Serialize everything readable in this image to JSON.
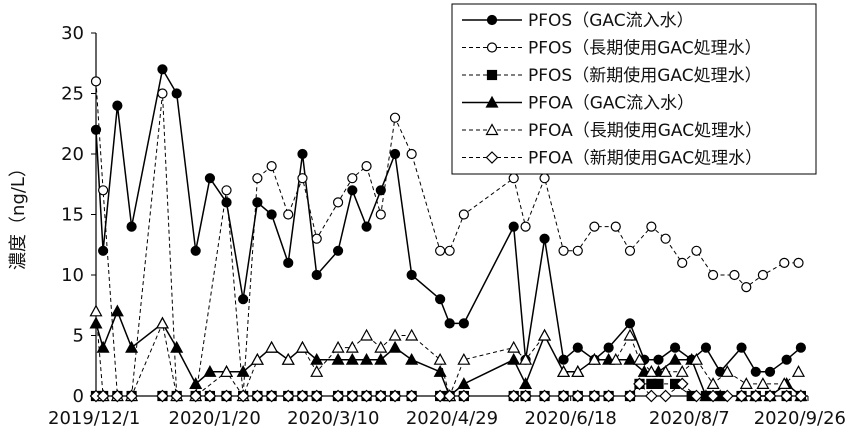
{
  "chart_data": {
    "type": "line",
    "title": "",
    "xlabel": "",
    "ylabel": "濃度（ng/L）",
    "ylim": [
      0,
      30
    ],
    "yticks": [
      0,
      5,
      10,
      15,
      20,
      25,
      30
    ],
    "xlim": [
      "2019-12-01",
      "2020-09-26"
    ],
    "xtick_labels": [
      "2019/12/1",
      "2020/1/20",
      "2020/3/10",
      "2020/4/29",
      "2020/6/18",
      "2020/8/7",
      "2020/9/26"
    ],
    "grid": false,
    "legend": "top-right",
    "series": [
      {
        "name": "PFOS（GAC流入水）",
        "line": "solid",
        "marker": "circle",
        "filled": true,
        "color": "#000000",
        "points": [
          [
            "2019-12-01",
            22
          ],
          [
            "2019-12-04",
            12
          ],
          [
            "2019-12-10",
            24
          ],
          [
            "2019-12-16",
            14
          ],
          [
            "2019-12-29",
            27
          ],
          [
            "2020-01-04",
            25
          ],
          [
            "2020-01-12",
            12
          ],
          [
            "2020-01-18",
            18
          ],
          [
            "2020-01-25",
            16
          ],
          [
            "2020-02-01",
            8
          ],
          [
            "2020-02-07",
            16
          ],
          [
            "2020-02-13",
            15
          ],
          [
            "2020-02-20",
            11
          ],
          [
            "2020-02-26",
            20
          ],
          [
            "2020-03-03",
            10
          ],
          [
            "2020-03-12",
            12
          ],
          [
            "2020-03-18",
            17
          ],
          [
            "2020-03-24",
            14
          ],
          [
            "2020-03-30",
            17
          ],
          [
            "2020-04-05",
            20
          ],
          [
            "2020-04-12",
            10
          ],
          [
            "2020-04-24",
            8
          ],
          [
            "2020-04-28",
            6
          ],
          [
            "2020-05-04",
            6
          ],
          [
            "2020-05-25",
            14
          ],
          [
            "2020-05-30",
            3
          ],
          [
            "2020-06-07",
            13
          ],
          [
            "2020-06-15",
            3
          ],
          [
            "2020-06-21",
            4
          ],
          [
            "2020-06-28",
            3
          ],
          [
            "2020-07-04",
            4
          ],
          [
            "2020-07-13",
            6
          ],
          [
            "2020-07-19",
            3
          ],
          [
            "2020-07-25",
            3
          ],
          [
            "2020-08-01",
            4
          ],
          [
            "2020-08-08",
            3
          ],
          [
            "2020-08-14",
            4
          ],
          [
            "2020-08-20",
            2
          ],
          [
            "2020-08-29",
            4
          ],
          [
            "2020-09-04",
            2
          ],
          [
            "2020-09-10",
            2
          ],
          [
            "2020-09-17",
            3
          ],
          [
            "2020-09-23",
            4
          ]
        ]
      },
      {
        "name": "PFOS（長期使用GAC処理水）",
        "line": "dashed",
        "marker": "circle",
        "filled": false,
        "color": "#000000",
        "points": [
          [
            "2019-12-01",
            26
          ],
          [
            "2019-12-04",
            17
          ],
          [
            "2019-12-10",
            0
          ],
          [
            "2019-12-16",
            0
          ],
          [
            "2019-12-29",
            25
          ],
          [
            "2020-01-04",
            0
          ],
          [
            "2020-01-12",
            0
          ],
          [
            "2020-01-25",
            17
          ],
          [
            "2020-02-01",
            0
          ],
          [
            "2020-02-07",
            18
          ],
          [
            "2020-02-13",
            19
          ],
          [
            "2020-02-20",
            15
          ],
          [
            "2020-02-26",
            18
          ],
          [
            "2020-03-03",
            13
          ],
          [
            "2020-03-12",
            16
          ],
          [
            "2020-03-18",
            18
          ],
          [
            "2020-03-24",
            19
          ],
          [
            "2020-03-30",
            15
          ],
          [
            "2020-04-05",
            23
          ],
          [
            "2020-04-12",
            20
          ],
          [
            "2020-04-24",
            12
          ],
          [
            "2020-04-28",
            12
          ],
          [
            "2020-05-04",
            15
          ],
          [
            "2020-05-25",
            18
          ],
          [
            "2020-05-30",
            14
          ],
          [
            "2020-06-07",
            18
          ],
          [
            "2020-06-15",
            12
          ],
          [
            "2020-06-21",
            12
          ],
          [
            "2020-06-28",
            14
          ],
          [
            "2020-07-07",
            14
          ],
          [
            "2020-07-13",
            12
          ],
          [
            "2020-07-22",
            14
          ],
          [
            "2020-07-28",
            13
          ],
          [
            "2020-08-04",
            11
          ],
          [
            "2020-08-10",
            12
          ],
          [
            "2020-08-17",
            10
          ],
          [
            "2020-08-26",
            10
          ],
          [
            "2020-08-31",
            9
          ],
          [
            "2020-09-07",
            10
          ],
          [
            "2020-09-16",
            11
          ],
          [
            "2020-09-22",
            11
          ]
        ]
      },
      {
        "name": "PFOS（新期使用GAC処理水）",
        "line": "dashed",
        "marker": "square",
        "filled": true,
        "color": "#000000",
        "points": [
          [
            "2019-12-01",
            0
          ],
          [
            "2019-12-04",
            0
          ],
          [
            "2019-12-10",
            0
          ],
          [
            "2019-12-16",
            0
          ],
          [
            "2019-12-29",
            0
          ],
          [
            "2020-01-04",
            0
          ],
          [
            "2020-01-12",
            0
          ],
          [
            "2020-01-18",
            0
          ],
          [
            "2020-01-25",
            0
          ],
          [
            "2020-02-01",
            0
          ],
          [
            "2020-02-07",
            0
          ],
          [
            "2020-02-13",
            0
          ],
          [
            "2020-02-20",
            0
          ],
          [
            "2020-02-26",
            0
          ],
          [
            "2020-03-03",
            0
          ],
          [
            "2020-03-12",
            0
          ],
          [
            "2020-03-18",
            0
          ],
          [
            "2020-03-24",
            0
          ],
          [
            "2020-03-30",
            0
          ],
          [
            "2020-04-05",
            0
          ],
          [
            "2020-04-12",
            0
          ],
          [
            "2020-04-24",
            0
          ],
          [
            "2020-04-28",
            0
          ],
          [
            "2020-05-04",
            0
          ],
          [
            "2020-05-25",
            0
          ],
          [
            "2020-05-30",
            0
          ],
          [
            "2020-06-07",
            0
          ],
          [
            "2020-06-15",
            0
          ],
          [
            "2020-06-21",
            0
          ],
          [
            "2020-06-28",
            0
          ],
          [
            "2020-07-04",
            0
          ],
          [
            "2020-07-13",
            0
          ],
          [
            "2020-07-17",
            1
          ],
          [
            "2020-07-22",
            1
          ],
          [
            "2020-07-25",
            1
          ],
          [
            "2020-08-01",
            1
          ],
          [
            "2020-08-08",
            0
          ],
          [
            "2020-08-14",
            0
          ],
          [
            "2020-08-20",
            0
          ],
          [
            "2020-08-29",
            0
          ],
          [
            "2020-09-04",
            0
          ],
          [
            "2020-09-10",
            0
          ],
          [
            "2020-09-17",
            0
          ],
          [
            "2020-09-23",
            0
          ]
        ]
      },
      {
        "name": "PFOA（GAC流入水）",
        "line": "solid",
        "marker": "triangle",
        "filled": true,
        "color": "#000000",
        "points": [
          [
            "2019-12-01",
            6
          ],
          [
            "2019-12-04",
            4
          ],
          [
            "2019-12-10",
            7
          ],
          [
            "2019-12-16",
            4
          ],
          [
            "2019-12-29",
            6
          ],
          [
            "2020-01-04",
            4
          ],
          [
            "2020-01-12",
            1
          ],
          [
            "2020-01-18",
            2
          ],
          [
            "2020-01-25",
            2
          ],
          [
            "2020-02-01",
            2
          ],
          [
            "2020-02-07",
            3
          ],
          [
            "2020-02-13",
            4
          ],
          [
            "2020-02-20",
            3
          ],
          [
            "2020-02-26",
            4
          ],
          [
            "2020-03-03",
            3
          ],
          [
            "2020-03-12",
            3
          ],
          [
            "2020-03-18",
            3
          ],
          [
            "2020-03-24",
            3
          ],
          [
            "2020-03-30",
            3
          ],
          [
            "2020-04-05",
            4
          ],
          [
            "2020-04-12",
            3
          ],
          [
            "2020-04-24",
            2
          ],
          [
            "2020-04-28",
            0
          ],
          [
            "2020-05-04",
            1
          ],
          [
            "2020-05-25",
            3
          ],
          [
            "2020-05-30",
            1
          ],
          [
            "2020-06-07",
            5
          ],
          [
            "2020-06-15",
            2
          ],
          [
            "2020-06-21",
            2
          ],
          [
            "2020-06-28",
            3
          ],
          [
            "2020-07-04",
            3
          ],
          [
            "2020-07-13",
            3
          ],
          [
            "2020-07-19",
            2
          ],
          [
            "2020-07-25",
            2
          ],
          [
            "2020-08-01",
            3
          ],
          [
            "2020-08-08",
            3
          ],
          [
            "2020-08-14",
            0
          ],
          [
            "2020-08-20",
            0
          ],
          [
            "2020-08-29",
            0
          ],
          [
            "2020-09-04",
            0
          ],
          [
            "2020-09-10",
            0
          ],
          [
            "2020-09-17",
            1
          ],
          [
            "2020-09-23",
            0
          ]
        ]
      },
      {
        "name": "PFOA（長期使用GAC処理水）",
        "line": "dashed",
        "marker": "triangle",
        "filled": false,
        "color": "#000000",
        "points": [
          [
            "2019-12-01",
            7
          ],
          [
            "2019-12-04",
            0
          ],
          [
            "2019-12-10",
            0
          ],
          [
            "2019-12-16",
            0
          ],
          [
            "2019-12-29",
            6
          ],
          [
            "2020-01-04",
            0
          ],
          [
            "2020-01-12",
            0
          ],
          [
            "2020-01-25",
            2
          ],
          [
            "2020-02-01",
            0
          ],
          [
            "2020-02-07",
            3
          ],
          [
            "2020-02-13",
            4
          ],
          [
            "2020-02-20",
            3
          ],
          [
            "2020-02-26",
            4
          ],
          [
            "2020-03-03",
            2
          ],
          [
            "2020-03-12",
            4
          ],
          [
            "2020-03-18",
            4
          ],
          [
            "2020-03-24",
            5
          ],
          [
            "2020-03-30",
            4
          ],
          [
            "2020-04-05",
            5
          ],
          [
            "2020-04-12",
            5
          ],
          [
            "2020-04-24",
            3
          ],
          [
            "2020-04-28",
            0
          ],
          [
            "2020-05-04",
            3
          ],
          [
            "2020-05-25",
            4
          ],
          [
            "2020-05-30",
            3
          ],
          [
            "2020-06-07",
            5
          ],
          [
            "2020-06-15",
            2
          ],
          [
            "2020-06-21",
            2
          ],
          [
            "2020-06-28",
            3
          ],
          [
            "2020-07-07",
            3
          ],
          [
            "2020-07-13",
            5
          ],
          [
            "2020-07-17",
            3
          ],
          [
            "2020-07-22",
            2
          ],
          [
            "2020-07-28",
            2
          ],
          [
            "2020-08-04",
            2
          ],
          [
            "2020-08-10",
            3
          ],
          [
            "2020-08-17",
            1
          ],
          [
            "2020-08-23",
            2
          ],
          [
            "2020-08-31",
            1
          ],
          [
            "2020-09-07",
            1
          ],
          [
            "2020-09-16",
            1
          ],
          [
            "2020-09-22",
            2
          ]
        ]
      },
      {
        "name": "PFOA（新期使用GAC処理水）",
        "line": "dashed",
        "marker": "diamond",
        "filled": false,
        "color": "#000000",
        "points": [
          [
            "2019-12-01",
            0
          ],
          [
            "2019-12-04",
            0
          ],
          [
            "2019-12-10",
            0
          ],
          [
            "2019-12-16",
            0
          ],
          [
            "2019-12-29",
            0
          ],
          [
            "2020-01-04",
            0
          ],
          [
            "2020-01-12",
            0
          ],
          [
            "2020-01-18",
            0
          ],
          [
            "2020-01-25",
            0
          ],
          [
            "2020-02-01",
            0
          ],
          [
            "2020-02-07",
            0
          ],
          [
            "2020-02-13",
            0
          ],
          [
            "2020-02-20",
            0
          ],
          [
            "2020-02-26",
            0
          ],
          [
            "2020-03-03",
            0
          ],
          [
            "2020-03-12",
            0
          ],
          [
            "2020-03-18",
            0
          ],
          [
            "2020-03-24",
            0
          ],
          [
            "2020-03-30",
            0
          ],
          [
            "2020-04-05",
            0
          ],
          [
            "2020-04-12",
            0
          ],
          [
            "2020-04-24",
            0
          ],
          [
            "2020-04-28",
            0
          ],
          [
            "2020-05-04",
            0
          ],
          [
            "2020-05-25",
            0
          ],
          [
            "2020-05-30",
            0
          ],
          [
            "2020-06-07",
            0
          ],
          [
            "2020-06-15",
            0
          ],
          [
            "2020-06-21",
            0
          ],
          [
            "2020-06-28",
            0
          ],
          [
            "2020-07-04",
            0
          ],
          [
            "2020-07-13",
            0
          ],
          [
            "2020-07-17",
            1
          ],
          [
            "2020-07-22",
            0
          ],
          [
            "2020-07-28",
            0
          ],
          [
            "2020-08-04",
            1
          ],
          [
            "2020-08-10",
            0
          ],
          [
            "2020-08-17",
            0
          ],
          [
            "2020-08-23",
            0
          ],
          [
            "2020-08-29",
            0
          ],
          [
            "2020-09-04",
            0
          ],
          [
            "2020-09-10",
            0
          ],
          [
            "2020-09-17",
            0
          ],
          [
            "2020-09-23",
            0
          ]
        ]
      }
    ]
  }
}
